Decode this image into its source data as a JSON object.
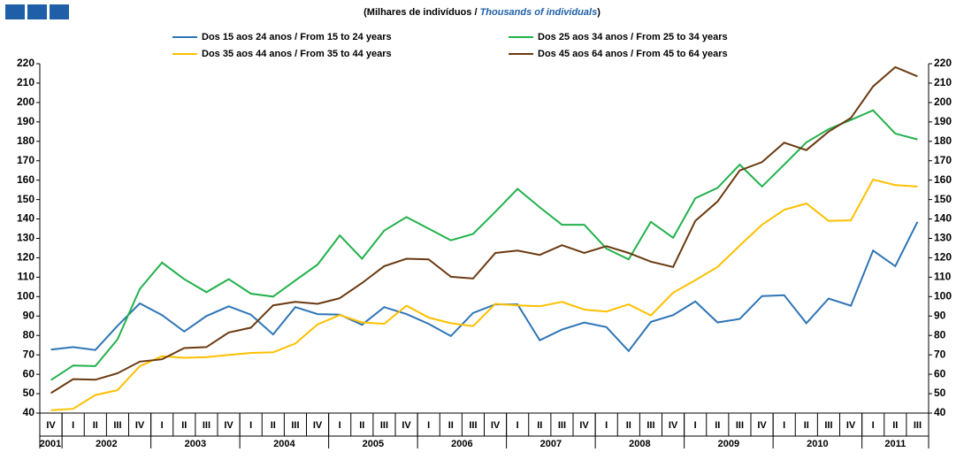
{
  "chart_data": {
    "type": "line",
    "subtitle_pt": "(Milhares de indivíduos  /",
    "subtitle_en": "Thousands of individuals",
    "subtitle_end": ")",
    "categories": [
      "IV",
      "I",
      "II",
      "III",
      "IV",
      "I",
      "II",
      "III",
      "IV",
      "I",
      "II",
      "III",
      "IV",
      "I",
      "II",
      "III",
      "IV",
      "I",
      "II",
      "III",
      "IV",
      "I",
      "II",
      "III",
      "IV",
      "I",
      "II",
      "III",
      "IV",
      "I",
      "II",
      "III",
      "IV",
      "I",
      "II",
      "III",
      "IV",
      "I",
      "II",
      "III"
    ],
    "years": [
      "2001",
      "2002",
      "2003",
      "2004",
      "2005",
      "2006",
      "2007",
      "2008",
      "2009",
      "2010",
      "2011"
    ],
    "series": [
      {
        "name": "Dos 15 aos 24 anos / From 15 to 24 years",
        "color": "#2e75b6",
        "values": [
          72.7,
          74,
          72.5,
          85,
          96.5,
          90.5,
          82,
          90,
          95,
          90.7,
          80.5,
          94.6,
          91,
          90.7,
          85.5,
          94.6,
          91,
          86,
          79.7,
          91.6,
          96,
          96,
          77.5,
          83,
          86.6,
          84.3,
          72,
          87,
          90.5,
          97.5,
          86.7,
          88.5,
          100.3,
          100.7,
          86.3,
          99,
          95.3,
          123.7,
          115.7,
          138.5
        ]
      },
      {
        "name": "Dos 25 aos 34 anos / From 25 to 34 years",
        "color": "#22b14c",
        "values": [
          57,
          64.5,
          64.2,
          78,
          104,
          117.5,
          109,
          102.3,
          109,
          101.5,
          100,
          108.3,
          116.5,
          131.5,
          119.5,
          134,
          141,
          135,
          129,
          132.3,
          143.7,
          155.5,
          146,
          137,
          137,
          124.7,
          119.2,
          138.5,
          130.3,
          150.7,
          156,
          168,
          156.7,
          168,
          179.5,
          186.3,
          191,
          196,
          184,
          181
        ]
      },
      {
        "name": "Dos 35 aos 44 anos / From 35 to 44 years",
        "color": "#ffc000",
        "values": [
          41.5,
          42.2,
          49.3,
          51.8,
          64.2,
          69.3,
          68.5,
          68.8,
          70,
          71,
          71.3,
          75.8,
          85.7,
          90.5,
          86.7,
          86,
          95.3,
          89.2,
          86.3,
          84.8,
          96.3,
          95.5,
          95,
          97.3,
          93.3,
          92.3,
          96,
          90.3,
          102,
          108.5,
          115.3,
          126.3,
          137,
          144.7,
          148,
          139,
          139.3,
          160.3,
          157.5,
          156.7
        ]
      },
      {
        "name": "Dos 45 aos 64 anos / From 45 to 64 years",
        "color": "#6b3a11",
        "values": [
          50.3,
          57.5,
          57.2,
          60.5,
          66.5,
          67.7,
          73.5,
          74,
          81.5,
          84,
          95.5,
          97.3,
          96.3,
          99.2,
          107,
          115.7,
          119.5,
          119.2,
          110.2,
          109.3,
          122.5,
          123.7,
          121.5,
          126.5,
          122.5,
          126,
          122.5,
          118,
          115.3,
          139,
          149,
          165,
          169.3,
          179.3,
          175.5,
          185,
          192,
          208.3,
          218.2,
          213.5
        ]
      }
    ],
    "ylim": [
      40,
      220
    ],
    "yticks": [
      40,
      50,
      60,
      70,
      80,
      90,
      100,
      110,
      120,
      130,
      140,
      150,
      160,
      170,
      180,
      190,
      200,
      210,
      220
    ],
    "y2lim": [
      40,
      220
    ],
    "y2ticks": [
      40,
      50,
      60,
      70,
      80,
      90,
      100,
      110,
      120,
      130,
      140,
      150,
      160,
      170,
      180,
      190,
      200,
      210,
      220
    ],
    "grid": false
  }
}
